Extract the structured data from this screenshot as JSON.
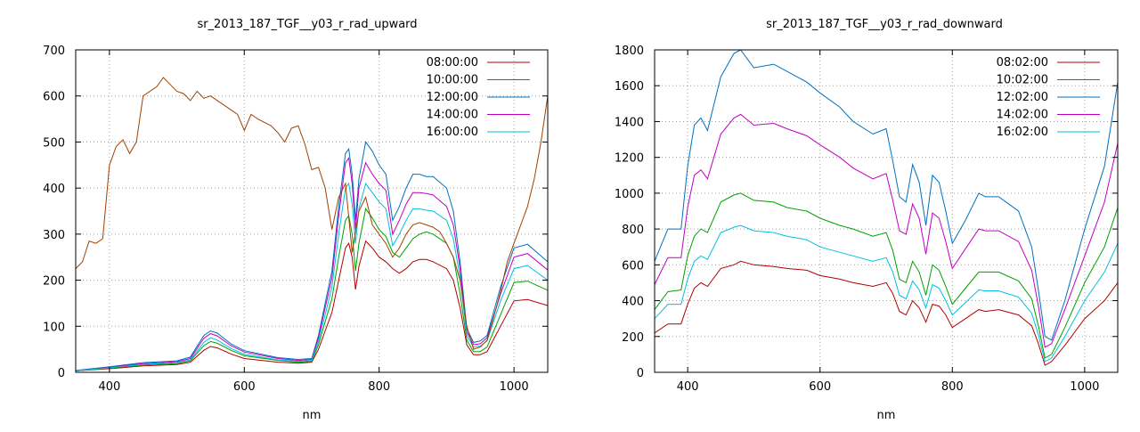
{
  "chart_data": [
    {
      "type": "line",
      "title": "sr_2013_187_TGF__y03_r_rad_upward",
      "xlabel": "nm",
      "ylabel": "",
      "xlim": [
        350,
        1050
      ],
      "ylim": [
        0,
        700
      ],
      "xticks": [
        400,
        600,
        800,
        1000
      ],
      "yticks": [
        0,
        100,
        200,
        300,
        400,
        500,
        600,
        700
      ],
      "grid": true,
      "legend_position": "top-right",
      "series": [
        {
          "name": "08:00:00",
          "color": "#b00000",
          "x": [
            350,
            400,
            450,
            500,
            520,
            540,
            550,
            560,
            580,
            600,
            650,
            680,
            700,
            710,
            720,
            730,
            740,
            750,
            755,
            760,
            765,
            770,
            780,
            790,
            800,
            810,
            820,
            830,
            840,
            850,
            860,
            870,
            880,
            900,
            910,
            920,
            930,
            940,
            950,
            960,
            980,
            1000,
            1020,
            1050
          ],
          "y": [
            3,
            8,
            14,
            17,
            22,
            48,
            56,
            53,
            40,
            30,
            22,
            20,
            22,
            50,
            90,
            130,
            200,
            270,
            280,
            250,
            180,
            230,
            285,
            270,
            250,
            240,
            225,
            215,
            225,
            240,
            245,
            245,
            240,
            225,
            200,
            140,
            60,
            38,
            38,
            45,
            100,
            155,
            158,
            145
          ]
        },
        {
          "name": "10:00:00",
          "color": "#00a000",
          "x": [
            350,
            400,
            450,
            500,
            520,
            540,
            550,
            560,
            580,
            600,
            650,
            680,
            700,
            710,
            720,
            730,
            740,
            750,
            755,
            760,
            765,
            770,
            780,
            790,
            800,
            810,
            820,
            830,
            840,
            850,
            860,
            870,
            880,
            900,
            910,
            920,
            930,
            940,
            950,
            960,
            980,
            1000,
            1020,
            1050
          ],
          "y": [
            3,
            9,
            16,
            19,
            25,
            58,
            67,
            63,
            48,
            36,
            26,
            22,
            24,
            60,
            110,
            160,
            250,
            330,
            340,
            300,
            220,
            280,
            355,
            335,
            310,
            295,
            260,
            250,
            270,
            290,
            300,
            305,
            300,
            280,
            250,
            170,
            70,
            45,
            45,
            55,
            125,
            195,
            198,
            178
          ]
        },
        {
          "name": "12:00:00",
          "color": "#0070c0",
          "x": [
            350,
            400,
            450,
            500,
            520,
            540,
            550,
            560,
            580,
            600,
            650,
            680,
            700,
            710,
            720,
            730,
            740,
            750,
            755,
            760,
            765,
            770,
            780,
            790,
            800,
            810,
            820,
            830,
            840,
            850,
            860,
            870,
            880,
            900,
            910,
            920,
            930,
            940,
            950,
            960,
            980,
            1000,
            1020,
            1050
          ],
          "y": [
            4,
            12,
            21,
            25,
            33,
            80,
            90,
            85,
            62,
            47,
            32,
            28,
            30,
            80,
            150,
            220,
            360,
            475,
            485,
            430,
            330,
            420,
            500,
            480,
            450,
            430,
            330,
            360,
            400,
            430,
            430,
            425,
            425,
            400,
            350,
            240,
            95,
            65,
            68,
            80,
            185,
            270,
            278,
            240
          ]
        },
        {
          "name": "14:00:00",
          "color": "#c000c0",
          "x": [
            350,
            400,
            450,
            500,
            520,
            540,
            550,
            560,
            580,
            600,
            650,
            680,
            700,
            710,
            720,
            730,
            740,
            750,
            755,
            760,
            765,
            770,
            780,
            790,
            800,
            810,
            820,
            830,
            840,
            850,
            860,
            870,
            880,
            900,
            910,
            920,
            930,
            940,
            950,
            960,
            980,
            1000,
            1020,
            1050
          ],
          "y": [
            3,
            11,
            19,
            23,
            30,
            74,
            84,
            79,
            58,
            44,
            30,
            26,
            28,
            75,
            140,
            205,
            340,
            455,
            465,
            410,
            310,
            400,
            455,
            430,
            410,
            395,
            300,
            330,
            365,
            390,
            390,
            388,
            385,
            360,
            320,
            225,
            88,
            60,
            62,
            75,
            170,
            250,
            258,
            222
          ]
        },
        {
          "name": "16:00:00",
          "color": "#00c0e0",
          "x": [
            350,
            400,
            450,
            500,
            520,
            540,
            550,
            560,
            580,
            600,
            650,
            680,
            700,
            710,
            720,
            730,
            740,
            750,
            755,
            760,
            765,
            770,
            780,
            790,
            800,
            810,
            820,
            830,
            840,
            850,
            860,
            870,
            880,
            900,
            910,
            920,
            930,
            940,
            950,
            960,
            980,
            1000,
            1020,
            1050
          ],
          "y": [
            3,
            10,
            17,
            21,
            27,
            65,
            75,
            70,
            52,
            39,
            27,
            24,
            26,
            68,
            125,
            185,
            300,
            400,
            410,
            365,
            280,
            355,
            410,
            390,
            370,
            355,
            275,
            300,
            330,
            355,
            355,
            352,
            350,
            330,
            290,
            205,
            80,
            55,
            57,
            68,
            155,
            225,
            232,
            200
          ]
        },
        {
          "name": "",
          "color": "#a04000",
          "x": [
            350,
            360,
            370,
            380,
            390,
            400,
            410,
            420,
            430,
            440,
            450,
            470,
            480,
            490,
            500,
            510,
            520,
            530,
            540,
            550,
            560,
            570,
            580,
            590,
            600,
            610,
            620,
            640,
            650,
            660,
            670,
            680,
            690,
            700,
            710,
            720,
            730,
            740,
            750,
            760,
            770,
            780,
            790,
            800,
            810,
            820,
            830,
            840,
            850,
            860,
            870,
            880,
            890,
            900,
            910,
            920,
            930,
            940,
            950,
            960,
            970,
            980,
            990,
            1000,
            1010,
            1020,
            1030,
            1040,
            1050
          ],
          "y": [
            225,
            240,
            285,
            280,
            290,
            450,
            490,
            505,
            475,
            500,
            600,
            620,
            640,
            625,
            610,
            605,
            590,
            610,
            595,
            600,
            590,
            580,
            570,
            560,
            525,
            560,
            550,
            535,
            520,
            500,
            530,
            535,
            495,
            440,
            445,
            400,
            310,
            380,
            410,
            260,
            350,
            380,
            320,
            300,
            280,
            250,
            270,
            300,
            320,
            325,
            320,
            315,
            305,
            280,
            250,
            200,
            100,
            50,
            55,
            70,
            120,
            175,
            240,
            280,
            320,
            360,
            420,
            500,
            600
          ]
        }
      ]
    },
    {
      "type": "line",
      "title": "sr_2013_187_TGF__y03_r_rad_downward",
      "xlabel": "nm",
      "ylabel": "",
      "xlim": [
        350,
        1050
      ],
      "ylim": [
        0,
        1800
      ],
      "xticks": [
        400,
        600,
        800,
        1000
      ],
      "yticks": [
        0,
        200,
        400,
        600,
        800,
        1000,
        1200,
        1400,
        1600,
        1800
      ],
      "grid": true,
      "legend_position": "top-right",
      "series": [
        {
          "name": "08:02:00",
          "color": "#b00000",
          "x": [
            350,
            370,
            390,
            400,
            410,
            420,
            430,
            450,
            470,
            480,
            500,
            530,
            550,
            580,
            600,
            630,
            650,
            680,
            700,
            710,
            720,
            730,
            740,
            750,
            760,
            770,
            780,
            790,
            800,
            820,
            840,
            850,
            870,
            900,
            920,
            930,
            940,
            950,
            970,
            1000,
            1030,
            1050
          ],
          "y": [
            220,
            270,
            270,
            380,
            470,
            500,
            480,
            580,
            600,
            620,
            600,
            590,
            580,
            570,
            540,
            520,
            500,
            480,
            500,
            440,
            340,
            320,
            400,
            360,
            280,
            380,
            370,
            320,
            250,
            300,
            350,
            340,
            350,
            320,
            260,
            160,
            40,
            60,
            150,
            300,
            400,
            500
          ]
        },
        {
          "name": "10:02:00",
          "color": "#00a000",
          "x": [
            350,
            370,
            390,
            400,
            410,
            420,
            430,
            450,
            470,
            480,
            500,
            530,
            550,
            580,
            600,
            630,
            650,
            680,
            700,
            710,
            720,
            730,
            740,
            750,
            760,
            770,
            780,
            790,
            800,
            820,
            840,
            850,
            870,
            900,
            920,
            930,
            940,
            950,
            970,
            1000,
            1030,
            1050
          ],
          "y": [
            350,
            450,
            460,
            650,
            760,
            800,
            780,
            950,
            990,
            1000,
            960,
            950,
            920,
            900,
            860,
            820,
            800,
            760,
            780,
            680,
            520,
            500,
            620,
            560,
            430,
            600,
            570,
            480,
            380,
            470,
            560,
            560,
            560,
            510,
            410,
            260,
            80,
            100,
            250,
            500,
            700,
            920
          ]
        },
        {
          "name": "12:02:00",
          "color": "#0070c0",
          "x": [
            350,
            370,
            390,
            400,
            410,
            420,
            430,
            450,
            470,
            480,
            500,
            530,
            550,
            580,
            600,
            630,
            650,
            680,
            700,
            710,
            720,
            730,
            740,
            750,
            760,
            770,
            780,
            790,
            800,
            820,
            840,
            850,
            870,
            900,
            920,
            930,
            940,
            950,
            970,
            1000,
            1030,
            1050
          ],
          "y": [
            620,
            800,
            800,
            1150,
            1380,
            1420,
            1350,
            1650,
            1780,
            1800,
            1700,
            1720,
            1680,
            1620,
            1560,
            1480,
            1400,
            1330,
            1360,
            1180,
            980,
            950,
            1160,
            1060,
            820,
            1100,
            1060,
            900,
            720,
            850,
            1000,
            980,
            980,
            900,
            700,
            460,
            200,
            180,
            400,
            800,
            1150,
            1620
          ]
        },
        {
          "name": "14:02:00",
          "color": "#c000c0",
          "x": [
            350,
            370,
            390,
            400,
            410,
            420,
            430,
            450,
            470,
            480,
            500,
            530,
            550,
            580,
            600,
            630,
            650,
            680,
            700,
            710,
            720,
            730,
            740,
            750,
            760,
            770,
            780,
            790,
            800,
            820,
            840,
            850,
            870,
            900,
            920,
            930,
            940,
            950,
            970,
            1000,
            1030,
            1050
          ],
          "y": [
            490,
            640,
            640,
            920,
            1100,
            1130,
            1080,
            1330,
            1420,
            1440,
            1380,
            1390,
            1360,
            1320,
            1270,
            1200,
            1140,
            1080,
            1110,
            960,
            790,
            770,
            940,
            860,
            660,
            890,
            860,
            730,
            580,
            690,
            800,
            790,
            790,
            730,
            570,
            370,
            140,
            160,
            350,
            650,
            950,
            1280
          ]
        },
        {
          "name": "16:02:00",
          "color": "#00c0e0",
          "x": [
            350,
            370,
            390,
            400,
            410,
            420,
            430,
            450,
            470,
            480,
            500,
            530,
            550,
            580,
            600,
            630,
            650,
            680,
            700,
            710,
            720,
            730,
            740,
            750,
            760,
            770,
            780,
            790,
            800,
            820,
            840,
            850,
            870,
            900,
            920,
            930,
            940,
            950,
            970,
            1000,
            1030,
            1050
          ],
          "y": [
            300,
            380,
            380,
            520,
            620,
            650,
            630,
            780,
            810,
            820,
            790,
            780,
            760,
            740,
            700,
            670,
            650,
            620,
            640,
            560,
            430,
            410,
            510,
            460,
            360,
            490,
            470,
            400,
            320,
            390,
            460,
            455,
            455,
            420,
            330,
            210,
            60,
            80,
            200,
            400,
            560,
            720
          ]
        }
      ]
    }
  ]
}
